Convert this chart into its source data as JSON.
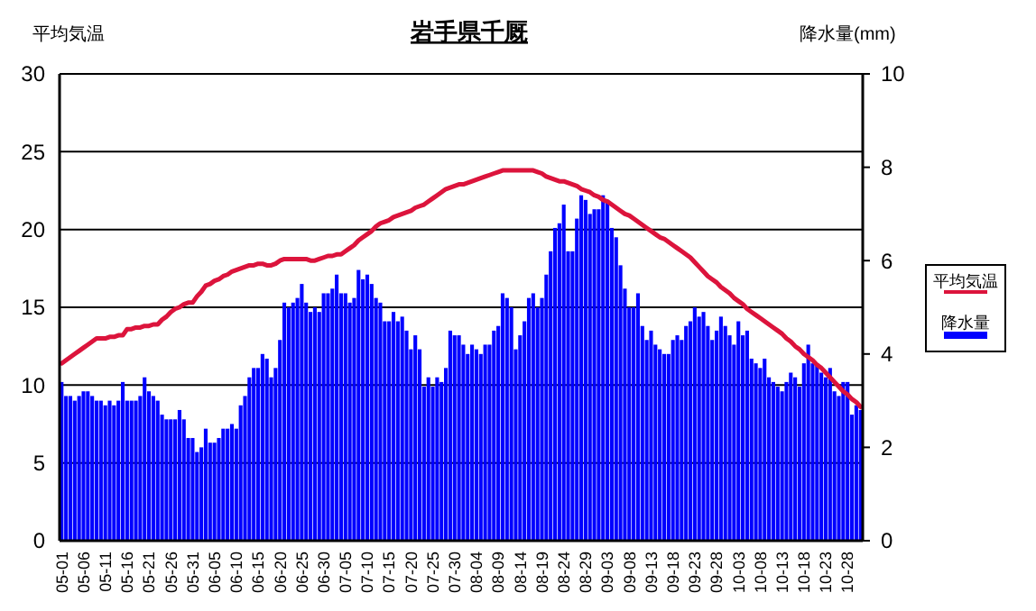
{
  "chart_data": {
    "type": "bar",
    "title": "岩手県千厩",
    "ylabel": "平均気温",
    "y2label": "降水量(mm)",
    "categories": [
      "05-01",
      null,
      null,
      null,
      null,
      "05-06",
      null,
      null,
      null,
      null,
      "05-11",
      null,
      null,
      null,
      null,
      "05-16",
      null,
      null,
      null,
      null,
      "05-21",
      null,
      null,
      null,
      null,
      "05-26",
      null,
      null,
      null,
      null,
      "05-31",
      null,
      null,
      null,
      null,
      "06-05",
      null,
      null,
      null,
      null,
      "06-10",
      null,
      null,
      null,
      null,
      "06-15",
      null,
      null,
      null,
      null,
      "06-20",
      null,
      null,
      null,
      null,
      "06-25",
      null,
      null,
      null,
      null,
      "06-30",
      null,
      null,
      null,
      null,
      "07-05",
      null,
      null,
      null,
      null,
      "07-10",
      null,
      null,
      null,
      null,
      "07-15",
      null,
      null,
      null,
      null,
      "07-20",
      null,
      null,
      null,
      null,
      "07-25",
      null,
      null,
      null,
      null,
      "07-30",
      null,
      null,
      null,
      null,
      "08-04",
      null,
      null,
      null,
      null,
      "08-09",
      null,
      null,
      null,
      null,
      "08-14",
      null,
      null,
      null,
      null,
      "08-19",
      null,
      null,
      null,
      null,
      "08-24",
      null,
      null,
      null,
      null,
      "08-29",
      null,
      null,
      null,
      null,
      "09-03",
      null,
      null,
      null,
      null,
      "09-08",
      null,
      null,
      null,
      null,
      "09-13",
      null,
      null,
      null,
      null,
      "09-18",
      null,
      null,
      null,
      null,
      "09-23",
      null,
      null,
      null,
      null,
      "09-28",
      null,
      null,
      null,
      null,
      "10-03",
      null,
      null,
      null,
      null,
      "10-08",
      null,
      null,
      null,
      null,
      "10-13",
      null,
      null,
      null,
      null,
      "10-18",
      null,
      null,
      null,
      null,
      "10-23",
      null,
      null,
      null,
      null,
      "10-28",
      null,
      null,
      null
    ],
    "series": [
      {
        "name": "平均気温",
        "type": "line",
        "color": "#dc143c",
        "values": [
          11.4,
          11.6,
          11.8,
          12.0,
          12.2,
          12.4,
          12.6,
          12.8,
          13.0,
          13.0,
          13.0,
          13.1,
          13.1,
          13.2,
          13.2,
          13.6,
          13.6,
          13.7,
          13.7,
          13.8,
          13.8,
          13.9,
          13.9,
          14.2,
          14.4,
          14.7,
          14.9,
          15.0,
          15.2,
          15.3,
          15.3,
          15.7,
          16.0,
          16.4,
          16.5,
          16.7,
          16.8,
          17.0,
          17.1,
          17.3,
          17.4,
          17.5,
          17.6,
          17.7,
          17.7,
          17.8,
          17.8,
          17.7,
          17.7,
          17.8,
          18.0,
          18.1,
          18.1,
          18.1,
          18.1,
          18.1,
          18.1,
          18.0,
          18.0,
          18.1,
          18.2,
          18.3,
          18.3,
          18.4,
          18.4,
          18.6,
          18.8,
          19.0,
          19.3,
          19.5,
          19.7,
          19.9,
          20.2,
          20.4,
          20.5,
          20.6,
          20.8,
          20.9,
          21.0,
          21.1,
          21.2,
          21.4,
          21.5,
          21.6,
          21.8,
          22.0,
          22.2,
          22.4,
          22.6,
          22.7,
          22.8,
          22.9,
          22.9,
          23.0,
          23.1,
          23.2,
          23.3,
          23.4,
          23.5,
          23.6,
          23.7,
          23.8,
          23.8,
          23.8,
          23.8,
          23.8,
          23.8,
          23.8,
          23.8,
          23.7,
          23.6,
          23.4,
          23.3,
          23.2,
          23.1,
          23.1,
          23.0,
          22.9,
          22.8,
          22.6,
          22.5,
          22.4,
          22.2,
          22.1,
          21.9,
          21.8,
          21.6,
          21.4,
          21.2,
          21.0,
          20.9,
          20.7,
          20.5,
          20.3,
          20.1,
          19.9,
          19.7,
          19.5,
          19.4,
          19.2,
          19.0,
          18.8,
          18.6,
          18.4,
          18.2,
          17.9,
          17.6,
          17.3,
          17.0,
          16.8,
          16.6,
          16.3,
          16.1,
          15.9,
          15.6,
          15.4,
          15.2,
          14.9,
          14.7,
          14.5,
          14.3,
          14.1,
          13.9,
          13.7,
          13.5,
          13.3,
          13.0,
          12.8,
          12.5,
          12.3,
          12.0,
          11.8,
          11.6,
          11.3,
          11.1,
          10.8,
          10.5,
          10.2,
          9.9,
          9.6,
          9.4,
          9.1,
          8.9,
          8.6
        ]
      },
      {
        "name": "降水量",
        "axis": "y2",
        "color": "#0000ff",
        "values": [
          3.4,
          3.1,
          3.1,
          3.0,
          3.1,
          3.2,
          3.2,
          3.1,
          3.0,
          3.0,
          2.9,
          3.0,
          2.9,
          3.0,
          3.4,
          3.0,
          3.0,
          3.0,
          3.1,
          3.5,
          3.2,
          3.1,
          3.0,
          2.7,
          2.6,
          2.6,
          2.6,
          2.8,
          2.6,
          2.2,
          2.2,
          1.9,
          2.0,
          2.4,
          2.1,
          2.1,
          2.2,
          2.4,
          2.4,
          2.5,
          2.4,
          2.9,
          3.1,
          3.5,
          3.7,
          3.7,
          4.0,
          3.9,
          3.5,
          3.7,
          4.3,
          5.1,
          5.0,
          5.1,
          5.2,
          5.5,
          5.1,
          4.9,
          5.0,
          4.9,
          5.3,
          5.3,
          5.4,
          5.7,
          5.3,
          5.3,
          5.1,
          5.2,
          5.8,
          5.6,
          5.7,
          5.5,
          5.2,
          5.1,
          4.7,
          4.7,
          4.9,
          4.7,
          4.8,
          4.5,
          4.1,
          4.4,
          4.1,
          3.3,
          3.5,
          3.3,
          3.5,
          3.4,
          3.7,
          4.5,
          4.4,
          4.4,
          4.2,
          4.0,
          4.2,
          4.1,
          4.0,
          4.2,
          4.2,
          4.5,
          4.6,
          5.3,
          5.2,
          5.0,
          4.1,
          4.4,
          4.7,
          5.2,
          5.3,
          5.0,
          5.2,
          5.7,
          6.2,
          6.7,
          6.8,
          7.2,
          6.2,
          6.2,
          6.9,
          7.4,
          7.3,
          7.0,
          7.1,
          7.1,
          7.4,
          7.3,
          6.7,
          6.5,
          5.9,
          5.4,
          5.0,
          5.0,
          5.3,
          4.6,
          4.3,
          4.5,
          4.2,
          4.1,
          4.0,
          4.0,
          4.3,
          4.4,
          4.3,
          4.6,
          4.7,
          5.0,
          4.8,
          4.9,
          4.6,
          4.3,
          4.5,
          4.8,
          4.6,
          4.4,
          4.2,
          4.7,
          4.4,
          4.5,
          3.9,
          3.8,
          3.7,
          3.9,
          3.5,
          3.4,
          3.3,
          3.2,
          3.4,
          3.6,
          3.5,
          3.3,
          3.8,
          4.2,
          3.8,
          3.8,
          3.6,
          3.5,
          3.7,
          3.2,
          3.1,
          3.4,
          3.4,
          2.7,
          2.9,
          2.8
        ]
      }
    ],
    "ylim": [
      0,
      30
    ],
    "yticks": [
      0,
      5,
      10,
      15,
      20,
      25,
      30
    ],
    "y2lim": [
      0,
      10
    ],
    "y2ticks": [
      0,
      2,
      4,
      6,
      8,
      10
    ],
    "grid": "y",
    "legend": "right"
  }
}
